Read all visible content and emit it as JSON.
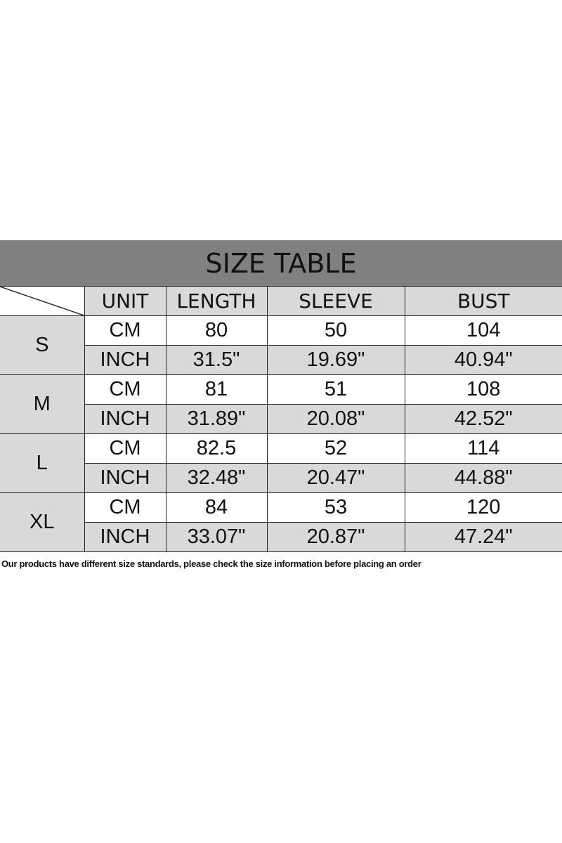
{
  "title": "SIZE TABLE",
  "headers": [
    "UNIT",
    "LENGTH",
    "SLEEVE",
    "BUST"
  ],
  "rows": [
    {
      "size": "S",
      "cm": [
        "CM",
        "80",
        "50",
        "104"
      ],
      "inch": [
        "INCH",
        "31.5\"",
        "19.69\"",
        "40.94\""
      ]
    },
    {
      "size": "M",
      "cm": [
        "CM",
        "81",
        "51",
        "108"
      ],
      "inch": [
        "INCH",
        "31.89\"",
        "20.08\"",
        "42.52\""
      ]
    },
    {
      "size": "L",
      "cm": [
        "CM",
        "82.5",
        "52",
        "114"
      ],
      "inch": [
        "INCH",
        "32.48\"",
        "20.47\"",
        "44.88\""
      ]
    },
    {
      "size": "XL",
      "cm": [
        "CM",
        "84",
        "53",
        "120"
      ],
      "inch": [
        "INCH",
        "33.07\"",
        "20.87\"",
        "47.24\""
      ]
    }
  ],
  "note": "Our products have different size standards, please check the size information before placing an order"
}
